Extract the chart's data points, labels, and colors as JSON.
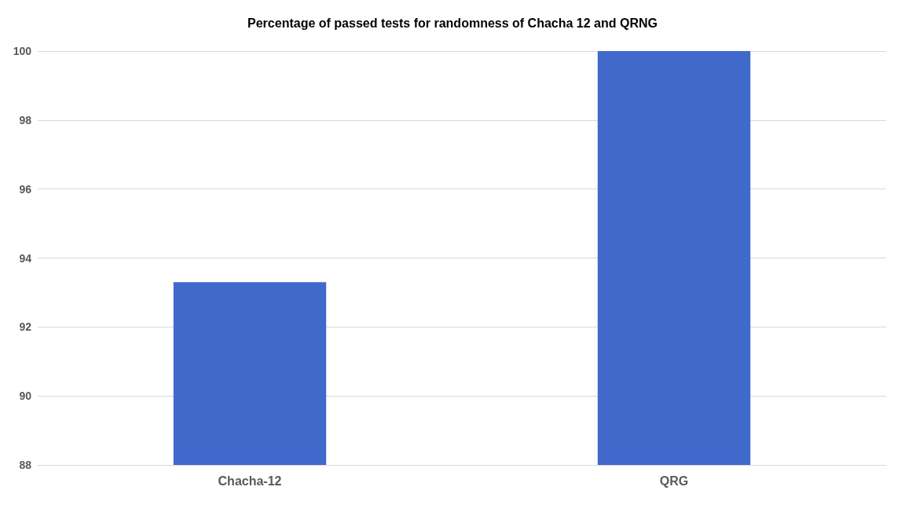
{
  "chart_data": {
    "type": "bar",
    "title": "Percentage of passed tests for randomness of Chacha 12 and QRNG",
    "categories": [
      "Chacha-12",
      "QRG"
    ],
    "values": [
      93.3,
      100
    ],
    "color": "#4169cc",
    "ylim": [
      88,
      100
    ],
    "yticks": [
      88,
      90,
      92,
      94,
      96,
      98,
      100
    ],
    "grid": "y"
  }
}
